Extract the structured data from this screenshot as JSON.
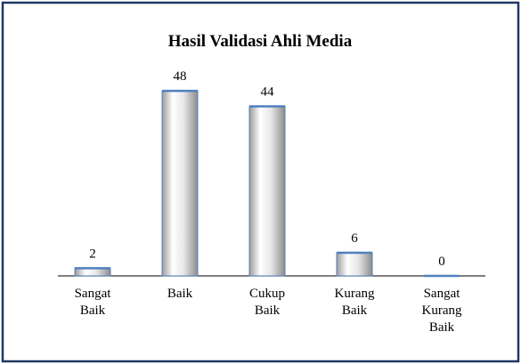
{
  "chart_data": {
    "type": "bar",
    "title": "Hasil Validasi Ahli Media",
    "categories": [
      "Sangat Baik",
      "Baik",
      "Cukup Baik",
      "Kurang Baik",
      "Sangat Kurang Baik"
    ],
    "values": [
      2,
      48,
      44,
      6,
      0
    ],
    "color": "#4f81bd"
  }
}
